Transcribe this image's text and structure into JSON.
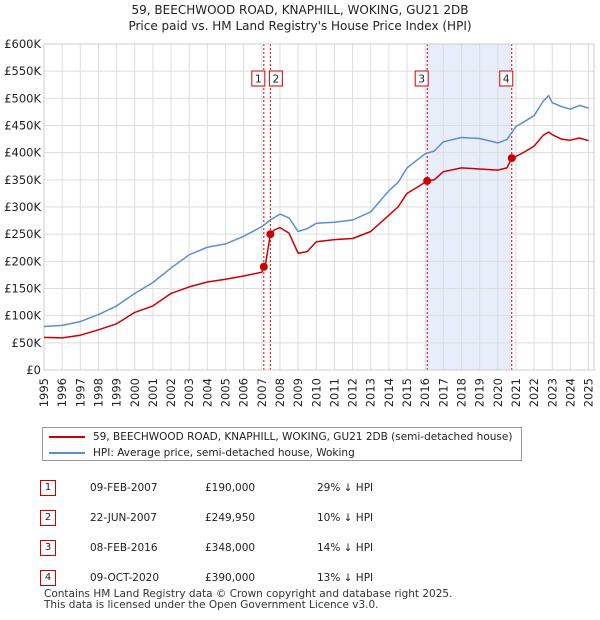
{
  "chart_data": {
    "type": "line",
    "title": "59, BEECHWOOD ROAD, KNAPHILL, WOKING, GU21 2DB",
    "subtitle": "Price paid vs. HM Land Registry's House Price Index (HPI)",
    "xlim": [
      1995,
      2025.3
    ],
    "ylim": [
      0,
      600000
    ],
    "y_ticks": [
      0,
      50000,
      100000,
      150000,
      200000,
      250000,
      300000,
      350000,
      400000,
      450000,
      500000,
      550000,
      600000
    ],
    "y_tick_labels": [
      "£0",
      "£50K",
      "£100K",
      "£150K",
      "£200K",
      "£250K",
      "£300K",
      "£350K",
      "£400K",
      "£450K",
      "£500K",
      "£550K",
      "£600K"
    ],
    "x_ticks": [
      1995,
      1996,
      1997,
      1998,
      1999,
      2000,
      2001,
      2002,
      2003,
      2004,
      2005,
      2006,
      2007,
      2008,
      2009,
      2010,
      2011,
      2012,
      2013,
      2014,
      2015,
      2016,
      2017,
      2018,
      2019,
      2020,
      2021,
      2022,
      2023,
      2024,
      2025
    ],
    "x_tick_labels": [
      "1995",
      "1996",
      "1997",
      "1998",
      "1999",
      "2000",
      "2001",
      "2002",
      "2003",
      "2004",
      "2005",
      "2006",
      "2007",
      "2008",
      "2009",
      "2010",
      "2011",
      "2012",
      "2013",
      "2014",
      "2015",
      "2016",
      "2017",
      "2018",
      "2019",
      "2020",
      "2021",
      "2022",
      "2023",
      "2024",
      "2025"
    ],
    "grid": true,
    "shaded_region": [
      2016.1,
      2020.77
    ],
    "series": [
      {
        "name": "59, BEECHWOOD ROAD, KNAPHILL, WOKING, GU21 2DB (semi-detached house)",
        "color": "#cc0000",
        "points": [
          [
            1995,
            60000
          ],
          [
            1996,
            59000
          ],
          [
            1997,
            64000
          ],
          [
            1998,
            74000
          ],
          [
            1999,
            85000
          ],
          [
            2000,
            106000
          ],
          [
            2001,
            118000
          ],
          [
            2002,
            141000
          ],
          [
            2003,
            153000
          ],
          [
            2004,
            162000
          ],
          [
            2005,
            167000
          ],
          [
            2006,
            173000
          ],
          [
            2007.0,
            180000
          ],
          [
            2007.11,
            190000
          ],
          [
            2007.2,
            195000
          ],
          [
            2007.47,
            249950
          ],
          [
            2007.7,
            258000
          ],
          [
            2008.0,
            262000
          ],
          [
            2008.5,
            252000
          ],
          [
            2009.0,
            215000
          ],
          [
            2009.5,
            218000
          ],
          [
            2010.0,
            236000
          ],
          [
            2011.0,
            240000
          ],
          [
            2012.0,
            242000
          ],
          [
            2013.0,
            255000
          ],
          [
            2014.0,
            285000
          ],
          [
            2014.5,
            300000
          ],
          [
            2015.0,
            325000
          ],
          [
            2015.5,
            335000
          ],
          [
            2016.11,
            348000
          ],
          [
            2016.5,
            350000
          ],
          [
            2017.0,
            365000
          ],
          [
            2018.0,
            372000
          ],
          [
            2019.0,
            370000
          ],
          [
            2020.0,
            368000
          ],
          [
            2020.5,
            372000
          ],
          [
            2020.77,
            390000
          ],
          [
            2021.0,
            393000
          ],
          [
            2021.5,
            402000
          ],
          [
            2022.0,
            412000
          ],
          [
            2022.5,
            432000
          ],
          [
            2022.8,
            438000
          ],
          [
            2023.0,
            433000
          ],
          [
            2023.5,
            425000
          ],
          [
            2024.0,
            423000
          ],
          [
            2024.5,
            427000
          ],
          [
            2025.0,
            422000
          ]
        ]
      },
      {
        "name": "HPI: Average price, semi-detached house, Woking",
        "color": "#5b8fcf",
        "points": [
          [
            1995,
            80000
          ],
          [
            1996,
            82000
          ],
          [
            1997,
            89000
          ],
          [
            1998,
            102000
          ],
          [
            1999,
            118000
          ],
          [
            2000,
            141000
          ],
          [
            2001,
            161000
          ],
          [
            2002,
            188000
          ],
          [
            2003,
            212000
          ],
          [
            2004,
            226000
          ],
          [
            2005,
            232000
          ],
          [
            2006,
            246000
          ],
          [
            2007.0,
            264000
          ],
          [
            2007.5,
            277000
          ],
          [
            2008.0,
            287000
          ],
          [
            2008.5,
            280000
          ],
          [
            2009.0,
            255000
          ],
          [
            2009.5,
            260000
          ],
          [
            2010.0,
            270000
          ],
          [
            2011.0,
            272000
          ],
          [
            2012.0,
            276000
          ],
          [
            2013.0,
            291000
          ],
          [
            2014.0,
            330000
          ],
          [
            2014.5,
            345000
          ],
          [
            2015.0,
            372000
          ],
          [
            2015.5,
            385000
          ],
          [
            2016.0,
            398000
          ],
          [
            2016.5,
            403000
          ],
          [
            2017.0,
            420000
          ],
          [
            2018.0,
            428000
          ],
          [
            2019.0,
            426000
          ],
          [
            2020.0,
            418000
          ],
          [
            2020.5,
            424000
          ],
          [
            2021.0,
            448000
          ],
          [
            2021.5,
            458000
          ],
          [
            2022.0,
            468000
          ],
          [
            2022.5,
            495000
          ],
          [
            2022.8,
            505000
          ],
          [
            2023.0,
            492000
          ],
          [
            2023.5,
            485000
          ],
          [
            2024.0,
            480000
          ],
          [
            2024.5,
            487000
          ],
          [
            2025.0,
            482000
          ]
        ]
      }
    ],
    "markers": [
      {
        "label": "1",
        "x": 2007.11,
        "y": 190000
      },
      {
        "label": "2",
        "x": 2007.47,
        "y": 249950
      },
      {
        "label": "3",
        "x": 2016.11,
        "y": 348000
      },
      {
        "label": "4",
        "x": 2020.77,
        "y": 390000
      }
    ]
  },
  "legend": {
    "property_label": "59, BEECHWOOD ROAD, KNAPHILL, WOKING, GU21 2DB (semi-detached house)",
    "hpi_label": "HPI: Average price, semi-detached house, Woking",
    "property_color": "#cc0000",
    "hpi_color": "#5b8fcf"
  },
  "transactions": [
    {
      "num": "1",
      "date": "09-FEB-2007",
      "price": "£190,000",
      "hpi": "29% ↓ HPI"
    },
    {
      "num": "2",
      "date": "22-JUN-2007",
      "price": "£249,950",
      "hpi": "10% ↓ HPI"
    },
    {
      "num": "3",
      "date": "08-FEB-2016",
      "price": "£348,000",
      "hpi": "14% ↓ HPI"
    },
    {
      "num": "4",
      "date": "09-OCT-2020",
      "price": "£390,000",
      "hpi": "13% ↓ HPI"
    }
  ],
  "footer": {
    "line1": "Contains HM Land Registry data © Crown copyright and database right 2025.",
    "line2": "This data is licensed under the Open Government Licence v3.0."
  }
}
